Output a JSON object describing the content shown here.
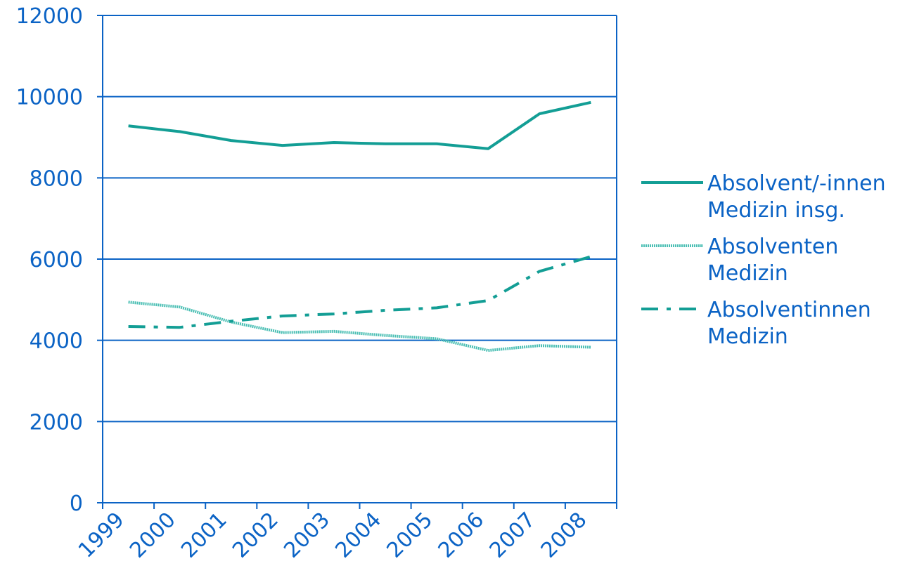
{
  "chart_data": {
    "type": "line",
    "title": "",
    "xlabel": "",
    "ylabel": "",
    "categories": [
      "1999",
      "2000",
      "2001",
      "2002",
      "2003",
      "2004",
      "2005",
      "2006",
      "2007",
      "2008"
    ],
    "ylim": [
      0,
      12000
    ],
    "yticks": [
      0,
      2000,
      4000,
      6000,
      8000,
      10000,
      12000
    ],
    "grid": true,
    "legend_position": "right",
    "series": [
      {
        "name": "Absolvent/-innen Medizin insg.",
        "legend_lines": [
          "Absolvent/-innen",
          "Medizin insg."
        ],
        "style": "solid",
        "color": "#139e95",
        "values": [
          9280,
          9140,
          8920,
          8800,
          8870,
          8840,
          8840,
          8720,
          9580,
          9860
        ]
      },
      {
        "name": "Absolventen Medizin",
        "legend_lines": [
          "Absolventen",
          "Medizin"
        ],
        "style": "textured",
        "color": "#4bbfb4",
        "values": [
          4940,
          4820,
          4450,
          4190,
          4220,
          4120,
          4040,
          3750,
          3870,
          3830
        ]
      },
      {
        "name": "Absolventinnen Medizin",
        "legend_lines": [
          "Absolventinnen",
          "Medizin"
        ],
        "style": "dash-dot",
        "color": "#139e95",
        "values": [
          4340,
          4320,
          4470,
          4600,
          4650,
          4740,
          4800,
          4980,
          5700,
          6060
        ]
      }
    ],
    "colors": {
      "axis": "#0b63c5",
      "grid": "#0b63c5",
      "text": "#0b63c5"
    }
  }
}
